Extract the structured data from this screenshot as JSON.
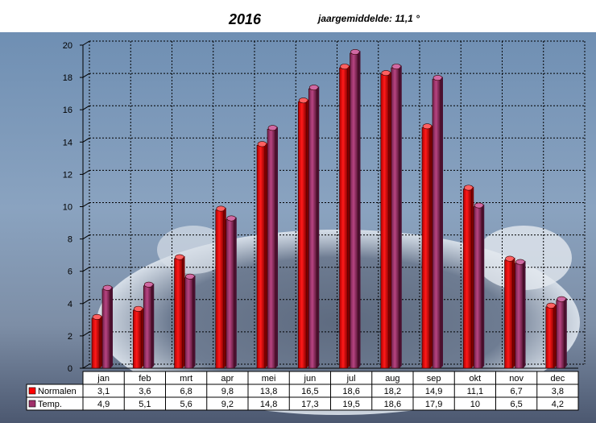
{
  "chart_data": {
    "type": "bar",
    "title": "2016",
    "subtitle": "jaargemiddelde: 11,1  °",
    "categories": [
      "jan",
      "feb",
      "mrt",
      "apr",
      "mei",
      "jun",
      "jul",
      "aug",
      "sep",
      "okt",
      "nov",
      "dec"
    ],
    "series": [
      {
        "name": "Normalen",
        "color": "#ff0000",
        "values": [
          3.1,
          3.6,
          6.8,
          9.8,
          13.8,
          16.5,
          18.6,
          18.2,
          14.9,
          11.1,
          6.7,
          3.8
        ],
        "labels": [
          "3,1",
          "3,6",
          "6,8",
          "9,8",
          "13,8",
          "16,5",
          "18,6",
          "18,2",
          "14,9",
          "11,1",
          "6,7",
          "3,8"
        ]
      },
      {
        "name": "Temp.",
        "color": "#a0306a",
        "values": [
          4.9,
          5.1,
          5.6,
          9.2,
          14.8,
          17.3,
          19.5,
          18.6,
          17.9,
          10,
          6.5,
          4.2
        ],
        "labels": [
          "4,9",
          "5,1",
          "5,6",
          "9,2",
          "14,8",
          "17,3",
          "19,5",
          "18,6",
          "17,9",
          "10",
          "6,5",
          "4,2"
        ]
      }
    ],
    "ylim": [
      0,
      20
    ],
    "yticks": [
      0,
      2,
      4,
      6,
      8,
      10,
      12,
      14,
      16,
      18,
      20
    ],
    "grid": true,
    "legend": "data-table"
  }
}
